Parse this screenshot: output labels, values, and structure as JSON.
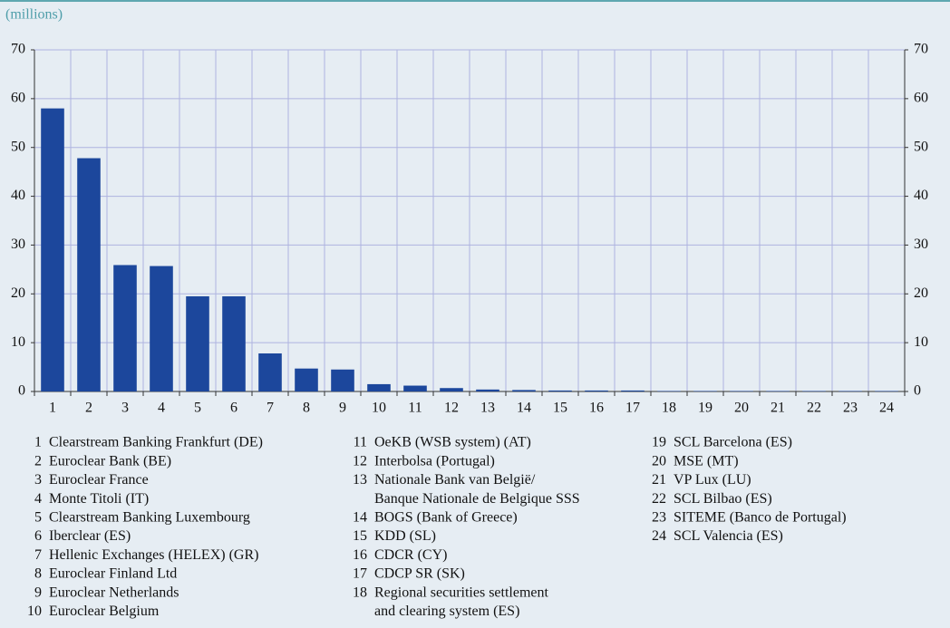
{
  "chart_data": {
    "type": "bar",
    "subtitle": "(millions)",
    "categories": [
      "1",
      "2",
      "3",
      "4",
      "5",
      "6",
      "7",
      "8",
      "9",
      "10",
      "11",
      "12",
      "13",
      "14",
      "15",
      "16",
      "17",
      "18",
      "19",
      "20",
      "21",
      "22",
      "23",
      "24"
    ],
    "values": [
      58,
      47.8,
      25.9,
      25.7,
      19.5,
      19.5,
      7.8,
      4.7,
      4.5,
      1.5,
      1.2,
      0.7,
      0.4,
      0.3,
      0.2,
      0.2,
      0.2,
      0.1,
      0.1,
      0.1,
      0.1,
      0.1,
      0.1,
      0.1
    ],
    "color": "#1c479c",
    "ylim": [
      0,
      70
    ],
    "yticks": [
      0,
      10,
      20,
      30,
      40,
      50,
      60,
      70
    ],
    "y2lim": [
      0,
      70
    ],
    "y2ticks": [
      0,
      10,
      20,
      30,
      40,
      50,
      60,
      70
    ],
    "grid": true,
    "legend": [
      {
        "number": "1",
        "lines": [
          "Clearstream Banking Frankfurt (DE)"
        ]
      },
      {
        "number": "2",
        "lines": [
          "Euroclear Bank (BE)"
        ]
      },
      {
        "number": "3",
        "lines": [
          "Euroclear France"
        ]
      },
      {
        "number": "4",
        "lines": [
          "Monte Titoli (IT)"
        ]
      },
      {
        "number": "5",
        "lines": [
          "Clearstream Banking Luxembourg"
        ]
      },
      {
        "number": "6",
        "lines": [
          "Iberclear (ES)"
        ]
      },
      {
        "number": "7",
        "lines": [
          "Hellenic Exchanges (HELEX) (GR)"
        ]
      },
      {
        "number": "8",
        "lines": [
          "Euroclear Finland Ltd"
        ]
      },
      {
        "number": "9",
        "lines": [
          "Euroclear Netherlands"
        ]
      },
      {
        "number": "10",
        "lines": [
          "Euroclear Belgium"
        ]
      },
      {
        "number": "11",
        "lines": [
          "OeKB (WSB system) (AT)"
        ]
      },
      {
        "number": "12",
        "lines": [
          "Interbolsa (Portugal)"
        ]
      },
      {
        "number": "13",
        "lines": [
          "Nationale Bank van België/",
          "Banque Nationale de Belgique SSS"
        ]
      },
      {
        "number": "14",
        "lines": [
          "BOGS (Bank of Greece)"
        ]
      },
      {
        "number": "15",
        "lines": [
          "KDD (SL)"
        ]
      },
      {
        "number": "16",
        "lines": [
          "CDCR (CY)"
        ]
      },
      {
        "number": "17",
        "lines": [
          "CDCP SR (SK)"
        ]
      },
      {
        "number": "18",
        "lines": [
          "Regional securities settlement",
          "and clearing system (ES)"
        ]
      },
      {
        "number": "19",
        "lines": [
          "SCL Barcelona (ES)"
        ]
      },
      {
        "number": "20",
        "lines": [
          "MSE (MT)"
        ]
      },
      {
        "number": "21",
        "lines": [
          "VP Lux (LU)"
        ]
      },
      {
        "number": "22",
        "lines": [
          "SCL Bilbao (ES)"
        ]
      },
      {
        "number": "23",
        "lines": [
          "SITEME (Banco de Portugal)"
        ]
      },
      {
        "number": "24",
        "lines": [
          "SCL Valencia (ES)"
        ]
      }
    ]
  }
}
